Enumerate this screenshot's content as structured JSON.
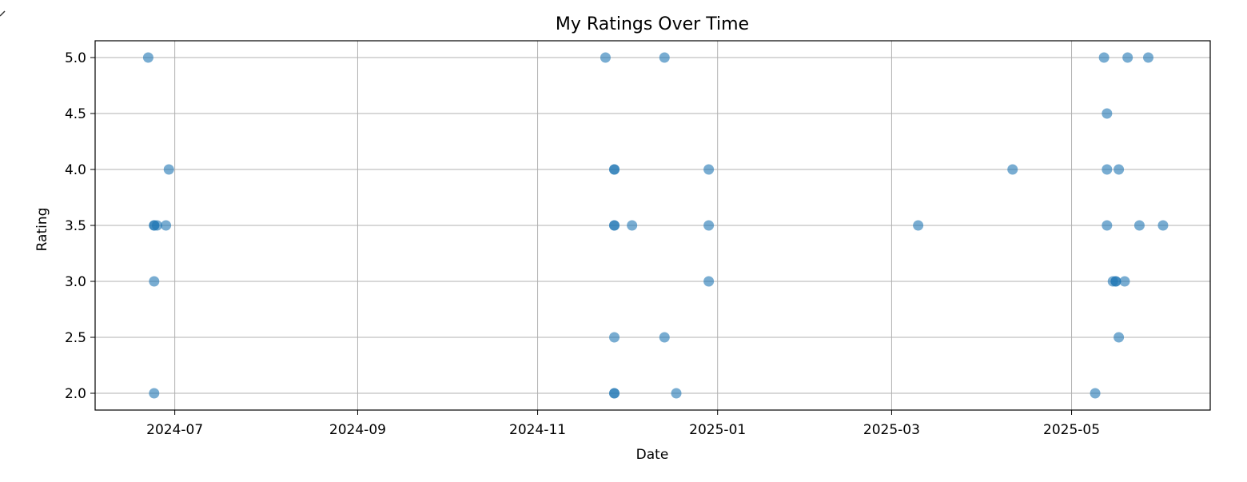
{
  "chart_data": {
    "type": "scatter",
    "title": "My Ratings Over Time",
    "xlabel": "Date",
    "ylabel": "Rating",
    "x_scale": "date",
    "xlim": [
      "2024-06-04",
      "2025-06-17"
    ],
    "ylim": [
      1.85,
      5.15
    ],
    "x_ticks": [
      {
        "value": "2024-07-01",
        "label": "2024-07"
      },
      {
        "value": "2024-09-01",
        "label": "2024-09"
      },
      {
        "value": "2024-11-01",
        "label": "2024-11"
      },
      {
        "value": "2025-01-01",
        "label": "2025-01"
      },
      {
        "value": "2025-03-01",
        "label": "2025-03"
      },
      {
        "value": "2025-05-01",
        "label": "2025-05"
      }
    ],
    "y_ticks": [
      {
        "value": 2.0,
        "label": "2.0"
      },
      {
        "value": 2.5,
        "label": "2.5"
      },
      {
        "value": 3.0,
        "label": "3.0"
      },
      {
        "value": 3.5,
        "label": "3.5"
      },
      {
        "value": 4.0,
        "label": "4.0"
      },
      {
        "value": 4.5,
        "label": "4.5"
      },
      {
        "value": 5.0,
        "label": "5.0"
      }
    ],
    "grid": true,
    "point_color": "#1f77b4",
    "point_alpha": 0.6,
    "series": [
      {
        "points": [
          {
            "x": "2024-06-22",
            "y": 5.0
          },
          {
            "x": "2024-06-24",
            "y": 3.5
          },
          {
            "x": "2024-06-24",
            "y": 3.5
          },
          {
            "x": "2024-06-25",
            "y": 3.5
          },
          {
            "x": "2024-06-24",
            "y": 3.0
          },
          {
            "x": "2024-06-24",
            "y": 2.0
          },
          {
            "x": "2024-06-29",
            "y": 4.0
          },
          {
            "x": "2024-06-28",
            "y": 3.5
          },
          {
            "x": "2024-11-24",
            "y": 5.0
          },
          {
            "x": "2024-11-27",
            "y": 4.0
          },
          {
            "x": "2024-11-27",
            "y": 4.0
          },
          {
            "x": "2024-11-27",
            "y": 3.5
          },
          {
            "x": "2024-11-27",
            "y": 3.5
          },
          {
            "x": "2024-11-27",
            "y": 2.5
          },
          {
            "x": "2024-11-27",
            "y": 2.0
          },
          {
            "x": "2024-11-27",
            "y": 2.0
          },
          {
            "x": "2024-12-03",
            "y": 3.5
          },
          {
            "x": "2024-12-14",
            "y": 5.0
          },
          {
            "x": "2024-12-14",
            "y": 2.5
          },
          {
            "x": "2024-12-18",
            "y": 2.0
          },
          {
            "x": "2024-12-29",
            "y": 4.0
          },
          {
            "x": "2024-12-29",
            "y": 3.5
          },
          {
            "x": "2024-12-29",
            "y": 3.0
          },
          {
            "x": "2025-03-10",
            "y": 3.5
          },
          {
            "x": "2025-04-11",
            "y": 4.0
          },
          {
            "x": "2025-05-09",
            "y": 2.0
          },
          {
            "x": "2025-05-12",
            "y": 5.0
          },
          {
            "x": "2025-05-13",
            "y": 4.5
          },
          {
            "x": "2025-05-13",
            "y": 4.0
          },
          {
            "x": "2025-05-13",
            "y": 3.5
          },
          {
            "x": "2025-05-15",
            "y": 3.0
          },
          {
            "x": "2025-05-16",
            "y": 3.0
          },
          {
            "x": "2025-05-16",
            "y": 3.0
          },
          {
            "x": "2025-05-17",
            "y": 4.0
          },
          {
            "x": "2025-05-17",
            "y": 2.5
          },
          {
            "x": "2025-05-19",
            "y": 3.0
          },
          {
            "x": "2025-05-20",
            "y": 5.0
          },
          {
            "x": "2025-05-24",
            "y": 3.5
          },
          {
            "x": "2025-05-27",
            "y": 5.0
          },
          {
            "x": "2025-06-01",
            "y": 3.5
          }
        ]
      }
    ]
  }
}
